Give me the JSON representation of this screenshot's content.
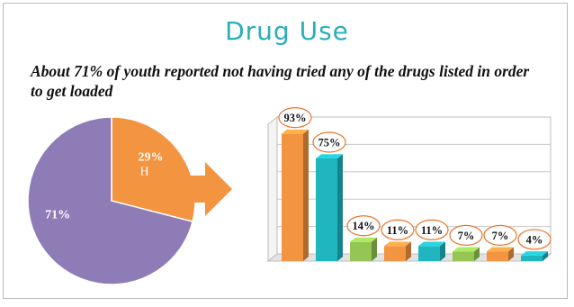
{
  "slide": {
    "title": "Drug Use",
    "subtitle_pre": "About 71% of youth reported ",
    "subtitle_emph": "not",
    "subtitle_post": " having tried any of the drugs listed in order to get loaded"
  },
  "colors": {
    "title": "#2aaeb8",
    "pie_yes": "#f39440",
    "pie_no": "#8e7cb6",
    "arrow": "#f39440",
    "bar_orange": "#f39440",
    "bar_teal": "#1fb6c0",
    "bar_green": "#95c653",
    "label_ring": "#e8742a"
  },
  "chart_data": [
    {
      "type": "pie",
      "slices": [
        {
          "label": "29%",
          "value": 29,
          "color": "#f39440",
          "sublabel": "H"
        },
        {
          "label": "71%",
          "value": 71,
          "color": "#8e7cb6"
        }
      ]
    },
    {
      "type": "bar",
      "categories": [
        "",
        "",
        "",
        "",
        "",
        "",
        "",
        ""
      ],
      "values": [
        93,
        75,
        14,
        11,
        11,
        7,
        7,
        4
      ],
      "data_labels": [
        "93%",
        "75%",
        "14%",
        "11%",
        "11%",
        "7%",
        "7%",
        "4%"
      ],
      "bar_colors": [
        "#f39440",
        "#1fb6c0",
        "#95c653",
        "#f39440",
        "#1fb6c0",
        "#95c653",
        "#f39440",
        "#1fb6c0"
      ],
      "ylim": [
        0,
        100
      ],
      "grid": true
    }
  ]
}
